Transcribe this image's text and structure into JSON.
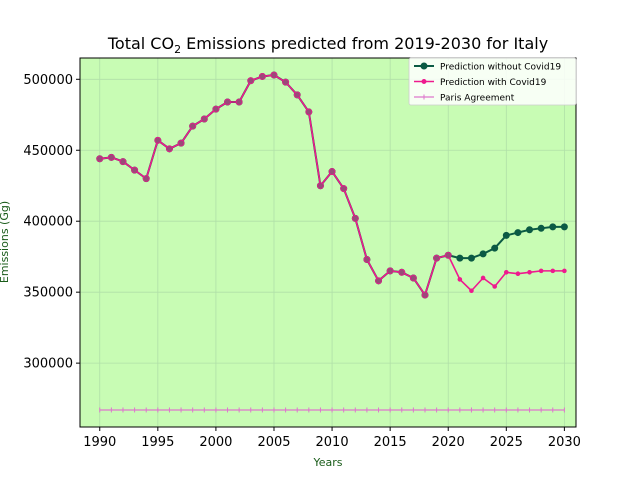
{
  "chart_data": {
    "type": "line",
    "title_prefix": "Total CO",
    "title_sub": "2",
    "title_suffix": " Emissions predicted from 2019-2030 for Italy",
    "xlabel": "Years",
    "ylabel": "Emissions (Gg)",
    "xlim": [
      1988.3,
      2031
    ],
    "ylim": [
      255000,
      515000
    ],
    "x_ticks": [
      1990,
      1995,
      2000,
      2005,
      2010,
      2015,
      2020,
      2025,
      2030
    ],
    "y_ticks": [
      300000,
      350000,
      400000,
      450000,
      500000
    ],
    "grid": true,
    "legend_position": "top-right",
    "colors": {
      "plot_background": "#c8fcb4",
      "without_covid": "#0b5a44",
      "with_covid": "#ee1a8e",
      "paris": "#dd77cc",
      "marker_face": "#9a4a78",
      "grid": "#b0dfa8",
      "axis_label": "#1a5c1a"
    },
    "series": [
      {
        "name": "Prediction without Covid19",
        "x": [
          1990,
          1991,
          1992,
          1993,
          1994,
          1995,
          1996,
          1997,
          1998,
          1999,
          2000,
          2001,
          2002,
          2003,
          2004,
          2005,
          2006,
          2007,
          2008,
          2009,
          2010,
          2011,
          2012,
          2013,
          2014,
          2015,
          2016,
          2017,
          2018,
          2019,
          2020,
          2021,
          2022,
          2023,
          2024,
          2025,
          2026,
          2027,
          2028,
          2029,
          2030
        ],
        "y": [
          444000,
          445000,
          442000,
          436000,
          430000,
          457000,
          451000,
          455000,
          467000,
          472000,
          479000,
          484000,
          484000,
          499000,
          502000,
          503000,
          498000,
          489000,
          477000,
          425000,
          435000,
          423000,
          402000,
          373000,
          358000,
          365000,
          364000,
          360000,
          348000,
          374000,
          376000,
          374000,
          374000,
          377000,
          381000,
          390000,
          392000,
          394000,
          395000,
          396000,
          396000
        ]
      },
      {
        "name": "Prediction with Covid19",
        "x": [
          1990,
          1991,
          1992,
          1993,
          1994,
          1995,
          1996,
          1997,
          1998,
          1999,
          2000,
          2001,
          2002,
          2003,
          2004,
          2005,
          2006,
          2007,
          2008,
          2009,
          2010,
          2011,
          2012,
          2013,
          2014,
          2015,
          2016,
          2017,
          2018,
          2019,
          2020,
          2021,
          2022,
          2023,
          2024,
          2025,
          2026,
          2027,
          2028,
          2029,
          2030
        ],
        "y": [
          444000,
          445000,
          442000,
          436000,
          430000,
          457000,
          451000,
          455000,
          467000,
          472000,
          479000,
          484000,
          484000,
          499000,
          502000,
          503000,
          498000,
          489000,
          477000,
          425000,
          435000,
          423000,
          402000,
          373000,
          358000,
          365000,
          364000,
          360000,
          348000,
          374000,
          376000,
          359000,
          351000,
          360000,
          354000,
          364000,
          363000,
          364000,
          365000,
          365000,
          365000
        ]
      },
      {
        "name": "Paris Agreement",
        "x": [
          1990,
          1991,
          1992,
          1993,
          1994,
          1995,
          1996,
          1997,
          1998,
          1999,
          2000,
          2001,
          2002,
          2003,
          2004,
          2005,
          2006,
          2007,
          2008,
          2009,
          2010,
          2011,
          2012,
          2013,
          2014,
          2015,
          2016,
          2017,
          2018,
          2019,
          2020,
          2021,
          2022,
          2023,
          2024,
          2025,
          2026,
          2027,
          2028,
          2029,
          2030
        ],
        "y": [
          267000,
          267000,
          267000,
          267000,
          267000,
          267000,
          267000,
          267000,
          267000,
          267000,
          267000,
          267000,
          267000,
          267000,
          267000,
          267000,
          267000,
          267000,
          267000,
          267000,
          267000,
          267000,
          267000,
          267000,
          267000,
          267000,
          267000,
          267000,
          267000,
          267000,
          267000,
          267000,
          267000,
          267000,
          267000,
          267000,
          267000,
          267000,
          267000,
          267000,
          267000
        ]
      }
    ]
  }
}
